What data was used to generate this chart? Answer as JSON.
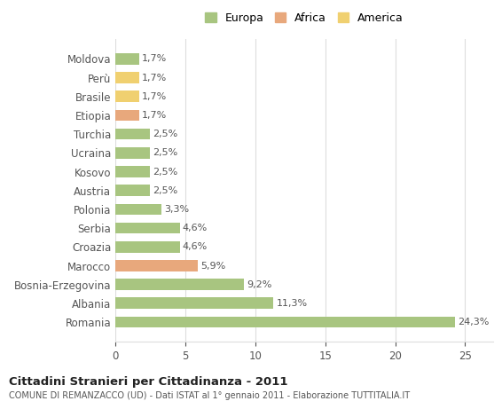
{
  "categories": [
    "Romania",
    "Albania",
    "Bosnia-Erzegovina",
    "Marocco",
    "Croazia",
    "Serbia",
    "Polonia",
    "Austria",
    "Kosovo",
    "Ucraina",
    "Turchia",
    "Etiopia",
    "Brasile",
    "Perù",
    "Moldova"
  ],
  "values": [
    24.3,
    11.3,
    9.2,
    5.9,
    4.6,
    4.6,
    3.3,
    2.5,
    2.5,
    2.5,
    2.5,
    1.7,
    1.7,
    1.7,
    1.7
  ],
  "labels": [
    "24,3%",
    "11,3%",
    "9,2%",
    "5,9%",
    "4,6%",
    "4,6%",
    "3,3%",
    "2,5%",
    "2,5%",
    "2,5%",
    "2,5%",
    "1,7%",
    "1,7%",
    "1,7%",
    "1,7%"
  ],
  "colors": [
    "#a8c580",
    "#a8c580",
    "#a8c580",
    "#e8a87c",
    "#a8c580",
    "#a8c580",
    "#a8c580",
    "#a8c580",
    "#a8c580",
    "#a8c580",
    "#a8c580",
    "#e8a87c",
    "#f0d070",
    "#f0d070",
    "#a8c580"
  ],
  "legend": [
    {
      "label": "Europa",
      "color": "#a8c580"
    },
    {
      "label": "Africa",
      "color": "#e8a87c"
    },
    {
      "label": "America",
      "color": "#f0d070"
    }
  ],
  "title": "Cittadini Stranieri per Cittadinanza - 2011",
  "subtitle": "COMUNE DI REMANZACCO (UD) - Dati ISTAT al 1° gennaio 2011 - Elaborazione TUTTITALIA.IT",
  "xlim": [
    0,
    27
  ],
  "xticks": [
    0,
    5,
    10,
    15,
    20,
    25
  ],
  "background_color": "#ffffff",
  "grid_color": "#dddddd"
}
